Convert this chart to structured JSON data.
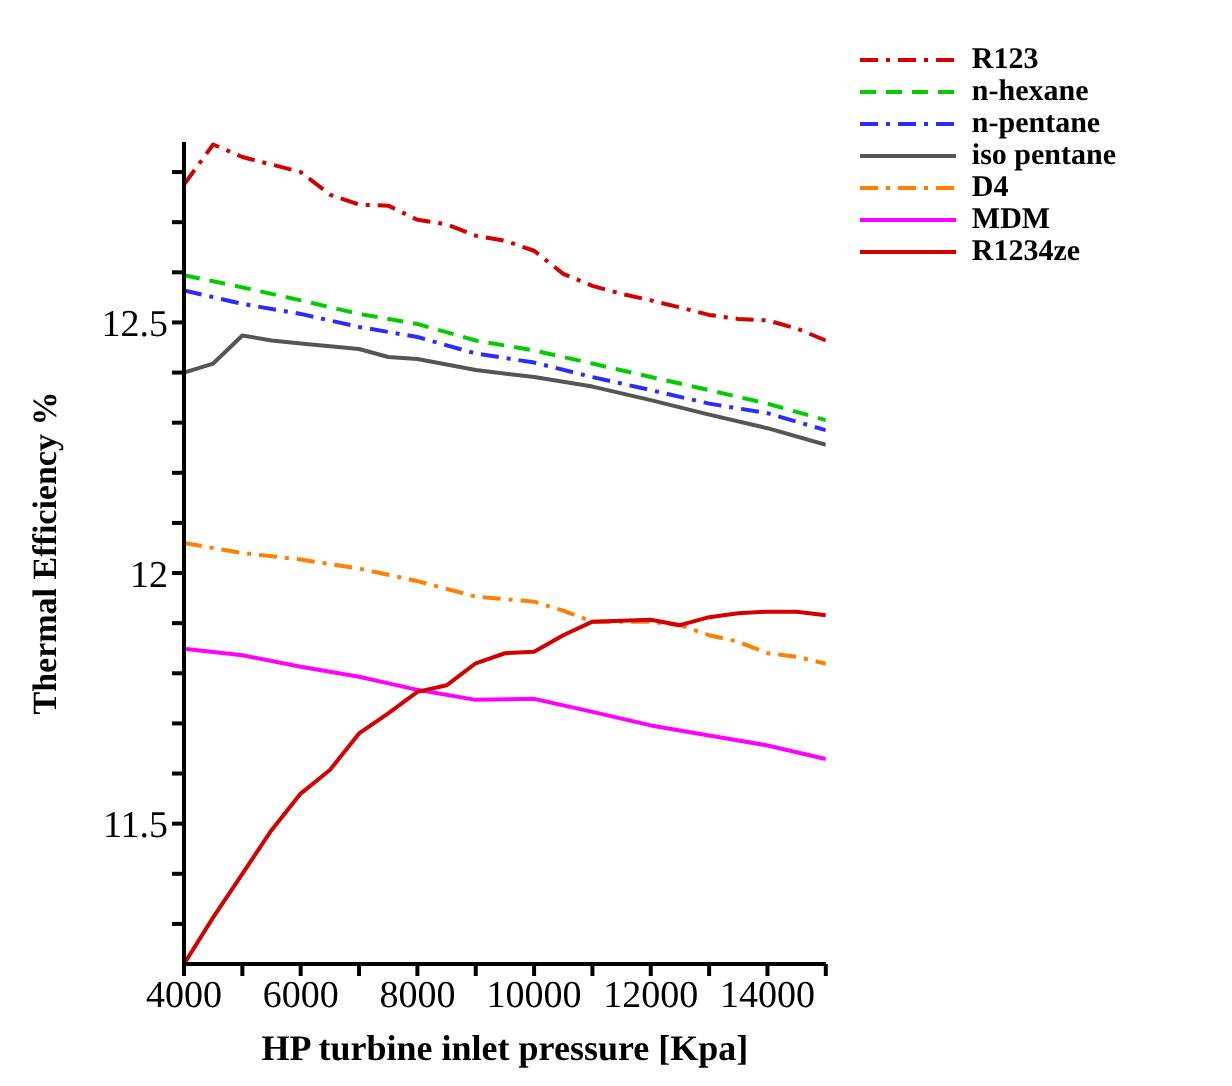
{
  "chart_data": {
    "type": "line",
    "xlabel": "HP turbine inlet pressure [Kpa]",
    "ylabel": "Thermal Efficiency %",
    "xlim": [
      4000,
      15000
    ],
    "xticks": [
      4000,
      {
        "value": 5000,
        "label": null
      },
      6000,
      {
        "value": 7000,
        "label": null
      },
      8000,
      {
        "value": 9000,
        "label": null
      },
      10000,
      {
        "value": 11000,
        "label": null
      },
      12000,
      {
        "value": 13000,
        "label": null
      },
      14000,
      {
        "value": 15000,
        "label": null
      }
    ],
    "ylim": [
      11.22,
      12.86
    ],
    "yticks": [
      {
        "value": 11.3,
        "label": null
      },
      {
        "value": 11.4,
        "label": null
      },
      11.5,
      {
        "value": 11.6,
        "label": null
      },
      {
        "value": 11.7,
        "label": null
      },
      {
        "value": 11.8,
        "label": null
      },
      {
        "value": 11.9,
        "label": null
      },
      12,
      {
        "value": 12.1,
        "label": null
      },
      {
        "value": 12.2,
        "label": null
      },
      {
        "value": 12.3,
        "label": null
      },
      {
        "value": 12.4,
        "label": null
      },
      12.5,
      {
        "value": 12.6,
        "label": null
      },
      {
        "value": 12.7,
        "label": null
      },
      {
        "value": 12.8,
        "label": null
      }
    ],
    "grid": false,
    "legend": "top right",
    "marker": "none",
    "series": [
      {
        "name": "R123",
        "color": "#d40000",
        "line_style": "dashdot",
        "x": [
          4000,
          4500,
          5000,
          5500,
          6000,
          6500,
          7000,
          7500,
          8000,
          8500,
          9000,
          9500,
          10000,
          10500,
          11000,
          11500,
          12000,
          12500,
          13000,
          13500,
          14000,
          14500,
          15000
        ],
        "values": [
          12.775,
          12.855,
          12.83,
          12.815,
          12.8,
          12.755,
          12.735,
          12.733,
          12.705,
          12.696,
          12.673,
          12.663,
          12.643,
          12.597,
          12.573,
          12.557,
          12.544,
          12.53,
          12.515,
          12.507,
          12.504,
          12.488,
          12.464
        ]
      },
      {
        "name": "n-hexane",
        "color": "#00cc00",
        "line_style": "dashed",
        "x": [
          4000,
          5000,
          6000,
          7000,
          8000,
          9000,
          10000,
          11000,
          12000,
          13000,
          14000,
          15000
        ],
        "values": [
          12.594,
          12.57,
          12.544,
          12.517,
          12.497,
          12.464,
          12.444,
          12.418,
          12.391,
          12.365,
          12.338,
          12.305
        ]
      },
      {
        "name": "n-pentane",
        "color": "#2b2bff",
        "line_style": "dashdot",
        "x": [
          4000,
          5000,
          6000,
          7000,
          8000,
          9000,
          10000,
          11000,
          12000,
          13000,
          14000,
          15000
        ],
        "values": [
          12.564,
          12.537,
          12.517,
          12.491,
          12.471,
          12.438,
          12.42,
          12.391,
          12.365,
          12.338,
          12.319,
          12.285
        ]
      },
      {
        "name": "iso pentane",
        "color": "#555555",
        "line_style": "solid",
        "x": [
          4000,
          4500,
          5000,
          5500,
          6000,
          7000,
          7500,
          8000,
          9000,
          10000,
          11000,
          12000,
          13000,
          14000,
          15000
        ],
        "values": [
          12.4,
          12.418,
          12.474,
          12.464,
          12.458,
          12.447,
          12.431,
          12.427,
          12.405,
          12.391,
          12.372,
          12.345,
          12.316,
          12.289,
          12.256
        ]
      },
      {
        "name": "D4",
        "color": "#ff8000",
        "line_style": "dashdot",
        "x": [
          4000,
          5000,
          6000,
          7000,
          8000,
          9000,
          10000,
          10500,
          11000,
          12000,
          12500,
          13000,
          13500,
          14000,
          14500,
          15000
        ],
        "values": [
          12.06,
          12.04,
          12.027,
          12.009,
          11.984,
          11.953,
          11.943,
          11.925,
          11.903,
          11.903,
          11.896,
          11.876,
          11.863,
          11.84,
          11.833,
          11.819
        ]
      },
      {
        "name": "MDM",
        "color": "#ff00ff",
        "line_style": "solid",
        "x": [
          4000,
          5000,
          6000,
          7000,
          8000,
          9000,
          10000,
          11000,
          12000,
          13000,
          14000,
          15000
        ],
        "values": [
          11.849,
          11.836,
          11.813,
          11.793,
          11.767,
          11.747,
          11.749,
          11.723,
          11.696,
          11.676,
          11.656,
          11.629
        ]
      },
      {
        "name": "R1234ze",
        "color": "#d40000",
        "line_style": "solid",
        "x": [
          4000,
          4500,
          5000,
          5500,
          6000,
          6500,
          7000,
          7500,
          8000,
          8500,
          9000,
          9500,
          10000,
          10500,
          11000,
          12000,
          12500,
          13000,
          13500,
          14000,
          14500,
          15000
        ],
        "values": [
          11.22,
          11.313,
          11.4,
          11.487,
          11.56,
          11.607,
          11.68,
          11.72,
          11.763,
          11.776,
          11.82,
          11.84,
          11.843,
          11.876,
          11.903,
          11.907,
          11.896,
          11.912,
          11.92,
          11.923,
          11.923,
          11.916
        ]
      }
    ]
  }
}
